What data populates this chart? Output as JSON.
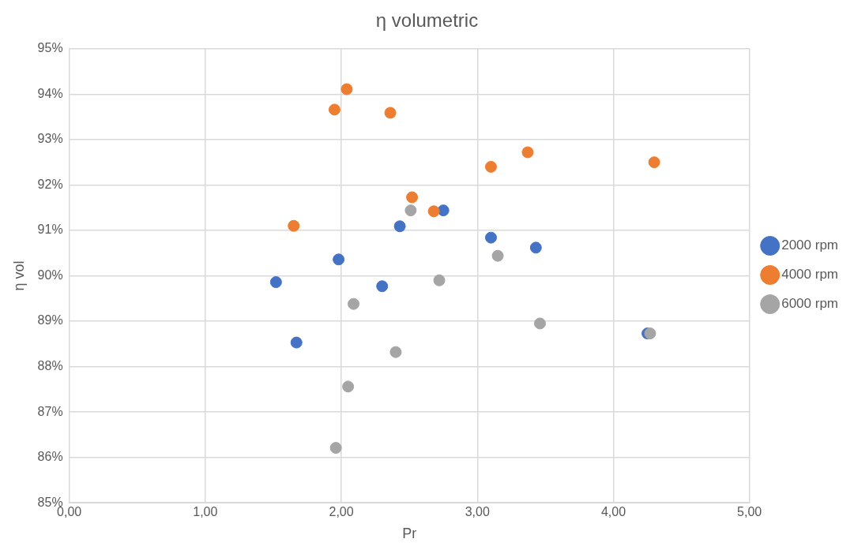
{
  "chart_data": {
    "type": "scatter",
    "title": "η volumetric",
    "xlabel": "Pr",
    "ylabel": "η vol",
    "xlim": [
      0,
      5
    ],
    "ylim": [
      85,
      95
    ],
    "xticks": [
      {
        "value": 0,
        "label": "0,00"
      },
      {
        "value": 1,
        "label": "1,00"
      },
      {
        "value": 2,
        "label": "2,00"
      },
      {
        "value": 3,
        "label": "3,00"
      },
      {
        "value": 4,
        "label": "4,00"
      },
      {
        "value": 5,
        "label": "5,00"
      }
    ],
    "yticks": [
      {
        "value": 85,
        "label": "85%"
      },
      {
        "value": 86,
        "label": "86%"
      },
      {
        "value": 87,
        "label": "87%"
      },
      {
        "value": 88,
        "label": "88%"
      },
      {
        "value": 89,
        "label": "89%"
      },
      {
        "value": 90,
        "label": "90%"
      },
      {
        "value": 91,
        "label": "91%"
      },
      {
        "value": 92,
        "label": "92%"
      },
      {
        "value": 93,
        "label": "93%"
      },
      {
        "value": 94,
        "label": "94%"
      },
      {
        "value": 95,
        "label": "95%"
      }
    ],
    "grid": true,
    "legend": "right",
    "marker": "circle",
    "series": [
      {
        "name": "2000 rpm",
        "color": "#4472c4",
        "x": [
          1.52,
          1.67,
          1.98,
          2.3,
          2.43,
          2.75,
          3.1,
          3.43,
          4.25
        ],
        "values": [
          89.86,
          88.53,
          90.36,
          89.77,
          91.09,
          91.44,
          90.84,
          90.62,
          88.73
        ]
      },
      {
        "name": "4000 rpm",
        "color": "#ed7d31",
        "x": [
          1.65,
          1.95,
          2.04,
          2.36,
          2.52,
          2.68,
          3.1,
          3.37,
          4.3
        ],
        "values": [
          91.1,
          93.66,
          94.11,
          93.59,
          91.73,
          91.42,
          92.4,
          92.72,
          92.5
        ]
      },
      {
        "name": "6000 rpm",
        "color": "#a5a5a5",
        "x": [
          1.96,
          2.05,
          2.09,
          2.4,
          2.51,
          2.72,
          3.15,
          3.46,
          4.27
        ],
        "values": [
          86.21,
          87.56,
          89.38,
          88.32,
          91.44,
          89.9,
          90.44,
          88.95,
          88.73
        ]
      }
    ]
  }
}
